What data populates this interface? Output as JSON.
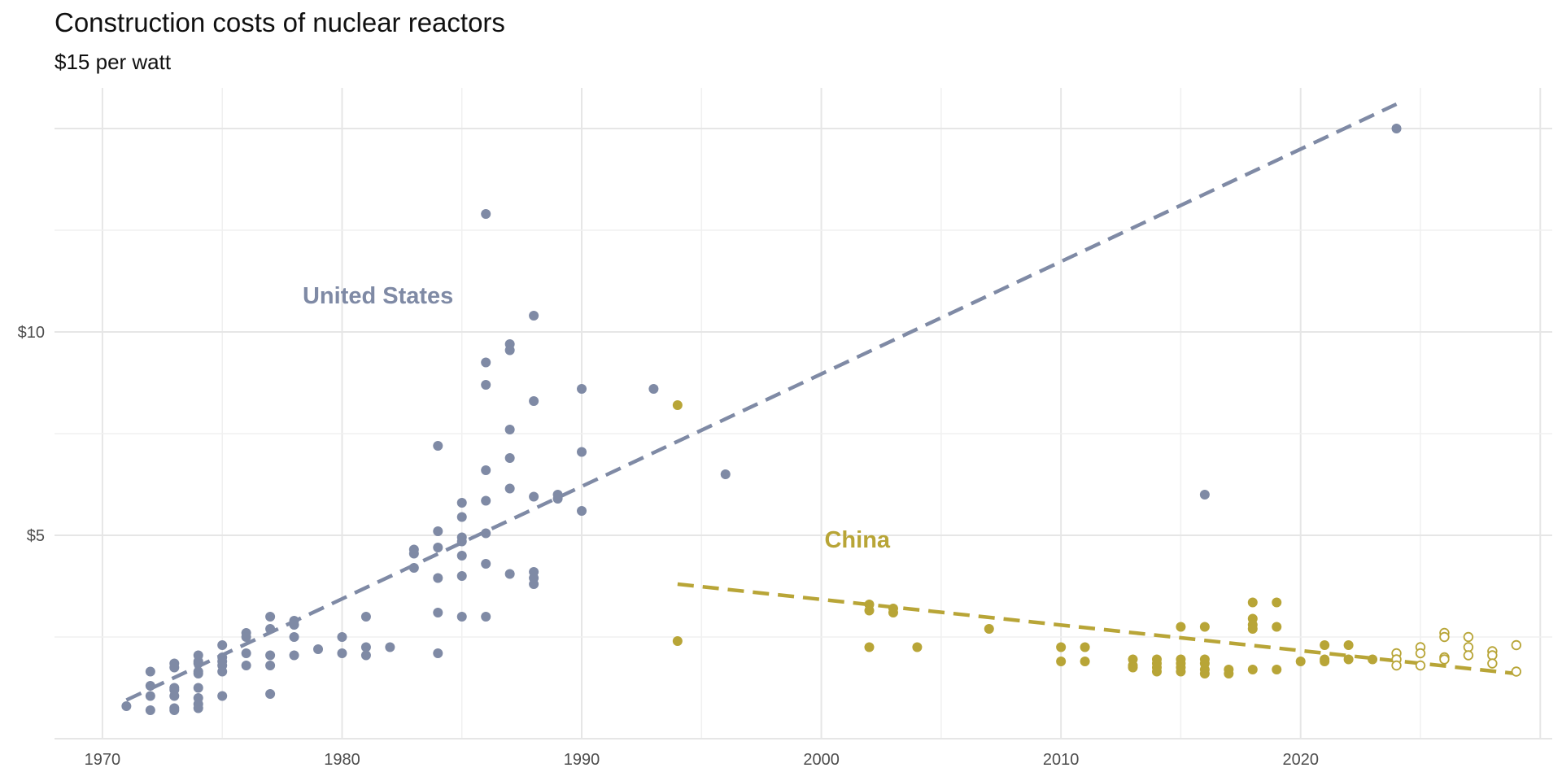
{
  "colors": {
    "us": "#7f8aa5",
    "china": "#b8a537"
  },
  "chart_data": {
    "type": "scatter",
    "title": "Construction costs of nuclear reactors",
    "subtitle": "$15 per watt",
    "xlabel": "",
    "ylabel": "",
    "xlim": [
      1968,
      2030.5
    ],
    "ylim": [
      0,
      16
    ],
    "x_ticks": [
      1970,
      1980,
      1990,
      2000,
      2010,
      2020
    ],
    "y_ticks": [
      {
        "value": 5,
        "label": "$5"
      },
      {
        "value": 10,
        "label": "$10"
      }
    ],
    "annotations": [
      {
        "text": "United States",
        "series": "us",
        "x": 1981.5,
        "y": 10.9
      },
      {
        "text": "China",
        "series": "china",
        "x": 2001.5,
        "y": 4.9
      }
    ],
    "series": [
      {
        "name": "United States",
        "key": "us",
        "trend": {
          "x": [
            1971,
            2024
          ],
          "y": [
            0.95,
            15.6
          ]
        },
        "points": [
          [
            1971,
            0.8
          ],
          [
            1972,
            1.65
          ],
          [
            1972,
            1.3
          ],
          [
            1972,
            1.05
          ],
          [
            1972,
            0.7
          ],
          [
            1973,
            1.85
          ],
          [
            1973,
            1.75
          ],
          [
            1973,
            1.25
          ],
          [
            1973,
            1.2
          ],
          [
            1973,
            1.05
          ],
          [
            1973,
            0.75
          ],
          [
            1973,
            0.7
          ],
          [
            1974,
            2.05
          ],
          [
            1974,
            1.9
          ],
          [
            1974,
            1.85
          ],
          [
            1974,
            1.65
          ],
          [
            1974,
            1.6
          ],
          [
            1974,
            1.25
          ],
          [
            1974,
            1.0
          ],
          [
            1974,
            0.85
          ],
          [
            1974,
            0.75
          ],
          [
            1975,
            2.3
          ],
          [
            1975,
            2.0
          ],
          [
            1975,
            1.9
          ],
          [
            1975,
            1.8
          ],
          [
            1975,
            1.65
          ],
          [
            1975,
            1.05
          ],
          [
            1976,
            2.6
          ],
          [
            1976,
            2.5
          ],
          [
            1976,
            2.1
          ],
          [
            1976,
            1.8
          ],
          [
            1977,
            3.0
          ],
          [
            1977,
            2.7
          ],
          [
            1977,
            2.05
          ],
          [
            1977,
            1.8
          ],
          [
            1977,
            1.1
          ],
          [
            1978,
            2.9
          ],
          [
            1978,
            2.8
          ],
          [
            1978,
            2.5
          ],
          [
            1978,
            2.05
          ],
          [
            1979,
            2.2
          ],
          [
            1980,
            2.5
          ],
          [
            1980,
            2.1
          ],
          [
            1981,
            3.0
          ],
          [
            1981,
            2.25
          ],
          [
            1981,
            2.05
          ],
          [
            1982,
            2.25
          ],
          [
            1983,
            4.65
          ],
          [
            1983,
            4.55
          ],
          [
            1983,
            4.2
          ],
          [
            1984,
            7.2
          ],
          [
            1984,
            5.1
          ],
          [
            1984,
            4.7
          ],
          [
            1984,
            3.95
          ],
          [
            1984,
            3.1
          ],
          [
            1984,
            2.1
          ],
          [
            1985,
            5.8
          ],
          [
            1985,
            5.45
          ],
          [
            1985,
            4.95
          ],
          [
            1985,
            4.85
          ],
          [
            1985,
            4.5
          ],
          [
            1985,
            4.0
          ],
          [
            1985,
            3.0
          ],
          [
            1986,
            12.9
          ],
          [
            1986,
            9.25
          ],
          [
            1986,
            8.7
          ],
          [
            1986,
            6.6
          ],
          [
            1986,
            5.85
          ],
          [
            1986,
            5.05
          ],
          [
            1986,
            4.3
          ],
          [
            1986,
            3.0
          ],
          [
            1987,
            9.7
          ],
          [
            1987,
            9.55
          ],
          [
            1987,
            7.6
          ],
          [
            1987,
            6.9
          ],
          [
            1987,
            6.15
          ],
          [
            1987,
            4.05
          ],
          [
            1988,
            10.4
          ],
          [
            1988,
            8.3
          ],
          [
            1988,
            5.95
          ],
          [
            1988,
            4.1
          ],
          [
            1988,
            3.95
          ],
          [
            1988,
            3.8
          ],
          [
            1989,
            6.0
          ],
          [
            1989,
            5.9
          ],
          [
            1990,
            8.6
          ],
          [
            1990,
            7.05
          ],
          [
            1990,
            5.6
          ],
          [
            1993,
            8.6
          ],
          [
            1996,
            6.5
          ],
          [
            2016,
            6.0
          ],
          [
            2024,
            15.0
          ]
        ]
      },
      {
        "name": "China",
        "key": "china",
        "trend": {
          "x": [
            1994,
            2029
          ],
          "y": [
            3.8,
            1.6
          ]
        },
        "points": [
          [
            1994,
            8.2
          ],
          [
            1994,
            2.4
          ],
          [
            2002,
            3.3
          ],
          [
            2002,
            3.15
          ],
          [
            2002,
            2.25
          ],
          [
            2003,
            3.2
          ],
          [
            2003,
            3.1
          ],
          [
            2004,
            2.25
          ],
          [
            2007,
            2.7
          ],
          [
            2010,
            2.25
          ],
          [
            2010,
            1.9
          ],
          [
            2011,
            2.25
          ],
          [
            2011,
            1.9
          ],
          [
            2013,
            1.95
          ],
          [
            2013,
            1.8
          ],
          [
            2013,
            1.75
          ],
          [
            2014,
            1.95
          ],
          [
            2014,
            1.85
          ],
          [
            2014,
            1.75
          ],
          [
            2014,
            1.65
          ],
          [
            2015,
            2.75
          ],
          [
            2015,
            1.95
          ],
          [
            2015,
            1.85
          ],
          [
            2015,
            1.75
          ],
          [
            2015,
            1.65
          ],
          [
            2016,
            2.75
          ],
          [
            2016,
            1.95
          ],
          [
            2016,
            1.85
          ],
          [
            2016,
            1.7
          ],
          [
            2016,
            1.6
          ],
          [
            2017,
            1.7
          ],
          [
            2017,
            1.6
          ],
          [
            2018,
            3.35
          ],
          [
            2018,
            2.95
          ],
          [
            2018,
            2.8
          ],
          [
            2018,
            2.7
          ],
          [
            2018,
            1.7
          ],
          [
            2019,
            3.35
          ],
          [
            2019,
            2.75
          ],
          [
            2019,
            1.7
          ],
          [
            2020,
            1.9
          ],
          [
            2021,
            2.3
          ],
          [
            2021,
            1.95
          ],
          [
            2021,
            1.9
          ],
          [
            2022,
            2.3
          ],
          [
            2022,
            1.95
          ],
          [
            2023,
            1.95
          ]
        ],
        "projected_points": [
          [
            2024,
            2.1
          ],
          [
            2024,
            1.95
          ],
          [
            2024,
            1.8
          ],
          [
            2025,
            2.25
          ],
          [
            2025,
            2.1
          ],
          [
            2025,
            1.8
          ],
          [
            2026,
            2.6
          ],
          [
            2026,
            2.5
          ],
          [
            2026,
            2.0
          ],
          [
            2026,
            1.95
          ],
          [
            2027,
            2.5
          ],
          [
            2027,
            2.25
          ],
          [
            2027,
            2.05
          ],
          [
            2028,
            2.15
          ],
          [
            2028,
            2.05
          ],
          [
            2028,
            1.85
          ],
          [
            2029,
            2.3
          ],
          [
            2029,
            1.65
          ]
        ]
      }
    ]
  }
}
